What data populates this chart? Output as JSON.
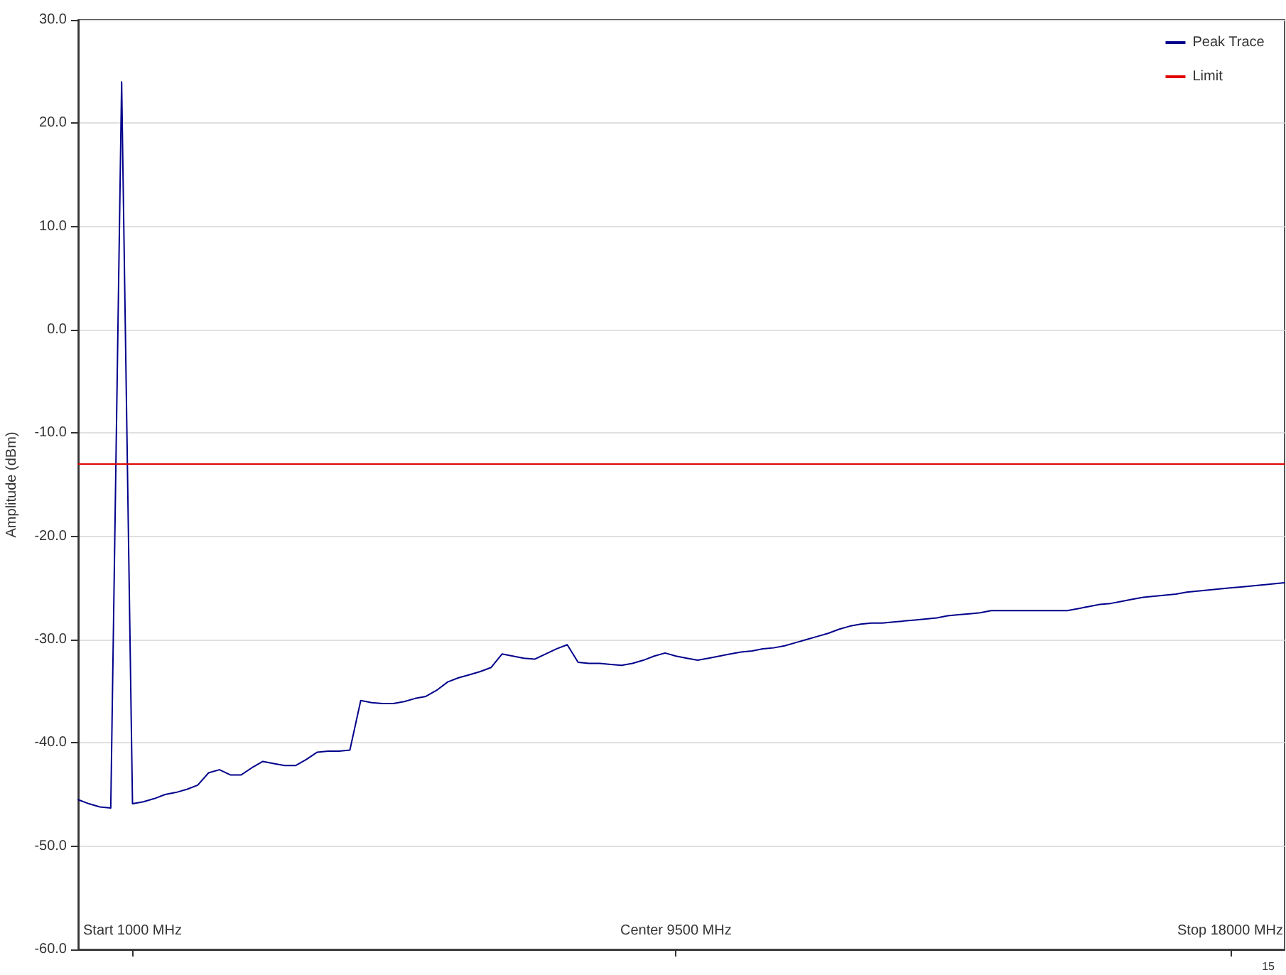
{
  "chart_data": {
    "type": "line",
    "ylabel": "Amplitude (dBm)",
    "annotations": [
      "15"
    ],
    "categories": [
      null,
      null,
      null,
      null,
      null,
      "Start 1000 MHz",
      null,
      null,
      null,
      null,
      null,
      null,
      null,
      null,
      null,
      null,
      null,
      null,
      null,
      null,
      null,
      null,
      null,
      null,
      null,
      null,
      null,
      null,
      null,
      null,
      null,
      null,
      null,
      null,
      null,
      null,
      null,
      null,
      null,
      null,
      null,
      null,
      null,
      null,
      null,
      null,
      null,
      null,
      null,
      null,
      null,
      null,
      null,
      null,
      null,
      "Center 9500 MHz",
      null,
      null,
      null,
      null,
      null,
      null,
      null,
      null,
      null,
      null,
      null,
      null,
      null,
      null,
      null,
      null,
      null,
      null,
      null,
      null,
      null,
      null,
      null,
      null,
      null,
      null,
      null,
      null,
      null,
      null,
      null,
      null,
      null,
      null,
      null,
      null,
      null,
      null,
      null,
      null,
      null,
      null,
      null,
      null,
      null,
      null,
      null,
      null,
      null,
      null,
      "Stop 18000 MHz",
      null,
      null,
      null,
      null,
      null
    ],
    "ylim": [
      -60,
      30
    ],
    "yticks": [
      {
        "value": -60,
        "label": "-60.0"
      },
      {
        "value": -50,
        "label": "-50.0"
      },
      {
        "value": -40,
        "label": "-40.0"
      },
      {
        "value": -30,
        "label": "-30.0"
      },
      {
        "value": -20,
        "label": "-20.0"
      },
      {
        "value": -10,
        "label": "-10.0"
      },
      {
        "value": 0,
        "label": "0.0"
      },
      {
        "value": 10,
        "label": "10.0"
      },
      {
        "value": 20,
        "label": "20.0"
      },
      {
        "value": 30,
        "label": "30.0"
      }
    ],
    "grid": "y",
    "legend": "top right",
    "marker": "none",
    "line_style": "solid",
    "series": [
      {
        "name": "Peak Trace",
        "color": "#00008b",
        "values": [
          -45.5,
          -45.9,
          -46.2,
          -46.3,
          24,
          -45.9,
          -45.7,
          -45.4,
          -45.0,
          -44.8,
          -44.5,
          -44.1,
          -42.9,
          -42.6,
          -43.1,
          -43.1,
          -42.4,
          -41.8,
          -42.0,
          -42.2,
          -42.2,
          -41.6,
          -40.9,
          -40.8,
          -40.8,
          -40.7,
          -35.9,
          -36.1,
          -36.2,
          -36.2,
          -36.0,
          -35.7,
          -35.5,
          -34.9,
          -34.1,
          -33.7,
          -33.4,
          -33.1,
          -32.7,
          -31.4,
          -31.6,
          -31.8,
          -31.9,
          -31.4,
          -30.9,
          -30.5,
          -32.2,
          -32.3,
          -32.3,
          -32.4,
          -32.5,
          -32.3,
          -32.0,
          -31.6,
          -31.3,
          -31.6,
          -31.8,
          -32.0,
          -31.8,
          -31.6,
          -31.4,
          -31.2,
          -31.1,
          -30.9,
          -30.8,
          -30.6,
          -30.3,
          -30.0,
          -29.7,
          -29.4,
          -29.0,
          -28.7,
          -28.5,
          -28.4,
          -28.4,
          -28.3,
          -28.2,
          -28.1,
          -28.0,
          -27.9,
          -27.7,
          -27.6,
          -27.5,
          -27.4,
          -27.2,
          -27.2,
          -27.2,
          -27.2,
          -27.2,
          -27.2,
          -27.2,
          -27.2,
          -27.0,
          -26.8,
          -26.6,
          -26.5,
          -26.3,
          -26.1,
          -25.9,
          -25.8,
          -25.7,
          -25.6,
          -25.4,
          -25.3,
          -25.2,
          -25.1,
          -25.0,
          -24.9,
          -24.8,
          -24.7,
          -24.6,
          -24.5
        ]
      },
      {
        "name": "Limit",
        "color": "#e00000",
        "values": [
          -13,
          -13,
          -13,
          -13,
          -13,
          -13,
          -13,
          -13,
          -13,
          -13,
          -13,
          -13,
          -13,
          -13,
          -13,
          -13,
          -13,
          -13,
          -13,
          -13,
          -13,
          -13,
          -13,
          -13,
          -13,
          -13,
          -13,
          -13,
          -13,
          -13,
          -13,
          -13,
          -13,
          -13,
          -13,
          -13,
          -13,
          -13,
          -13,
          -13,
          -13,
          -13,
          -13,
          -13,
          -13,
          -13,
          -13,
          -13,
          -13,
          -13,
          -13,
          -13,
          -13,
          -13,
          -13,
          -13,
          -13,
          -13,
          -13,
          -13,
          -13,
          -13,
          -13,
          -13,
          -13,
          -13,
          -13,
          -13,
          -13,
          -13,
          -13,
          -13,
          -13,
          -13,
          -13,
          -13,
          -13,
          -13,
          -13,
          -13,
          -13,
          -13,
          -13,
          -13,
          -13,
          -13,
          -13,
          -13,
          -13,
          -13,
          -13,
          -13,
          -13,
          -13,
          -13,
          -13,
          -13,
          -13,
          -13,
          -13,
          -13,
          -13,
          -13,
          -13,
          -13,
          -13,
          -13,
          -13,
          -13,
          -13,
          -13,
          -13
        ]
      }
    ]
  }
}
